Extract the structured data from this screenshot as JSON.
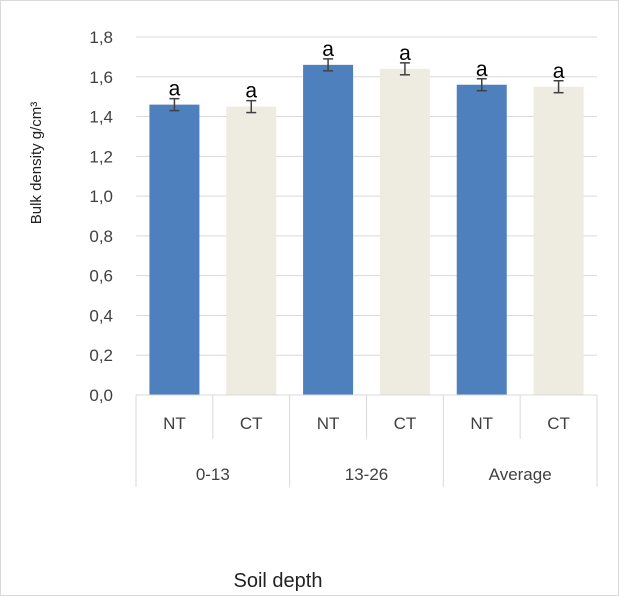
{
  "chart_data": {
    "type": "bar",
    "title": "",
    "ylabel": "Bulk density g/cm³",
    "xlabel": "Soil depth",
    "ylim": [
      0.0,
      1.8
    ],
    "yticks": [
      "0,0",
      "0,2",
      "0,4",
      "0,6",
      "0,8",
      "1,0",
      "1,2",
      "1,4",
      "1,6",
      "1,8"
    ],
    "groups": [
      "0-13",
      "13-26",
      "Average"
    ],
    "categories": [
      "NT",
      "CT",
      "NT",
      "CT",
      "NT",
      "CT"
    ],
    "values": [
      1.46,
      1.45,
      1.66,
      1.64,
      1.56,
      1.55
    ],
    "errors": [
      0.03,
      0.03,
      0.03,
      0.03,
      0.03,
      0.03
    ],
    "significance": [
      "a",
      "a",
      "a",
      "a",
      "a",
      "a"
    ],
    "colors": {
      "NT": "#4e80bd",
      "CT": "#eeece1"
    },
    "grid": true,
    "legend": "none"
  }
}
